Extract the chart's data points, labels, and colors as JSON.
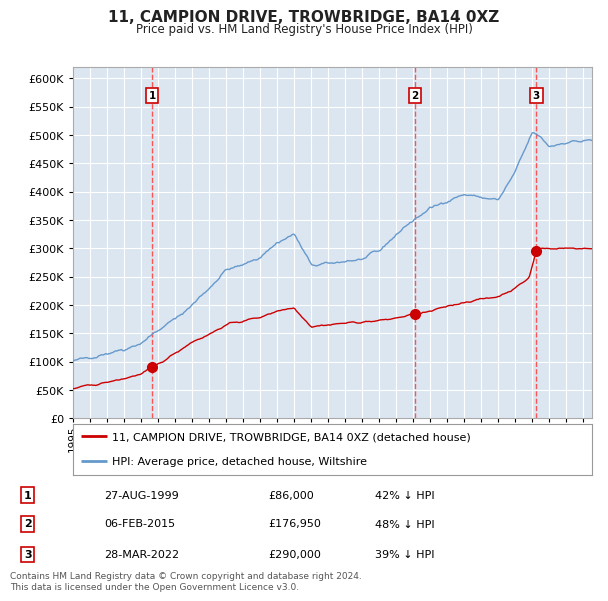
{
  "title": "11, CAMPION DRIVE, TROWBRIDGE, BA14 0XZ",
  "subtitle": "Price paid vs. HM Land Registry's House Price Index (HPI)",
  "legend_line1": "11, CAMPION DRIVE, TROWBRIDGE, BA14 0XZ (detached house)",
  "legend_line2": "HPI: Average price, detached house, Wiltshire",
  "transactions": [
    {
      "label": "1",
      "date": "27-AUG-1999",
      "price": 86000,
      "note": "42% ↓ HPI",
      "x": 1999.65
    },
    {
      "label": "2",
      "date": "06-FEB-2015",
      "price": 176950,
      "note": "48% ↓ HPI",
      "x": 2015.1
    },
    {
      "label": "3",
      "date": "28-MAR-2022",
      "price": 290000,
      "note": "39% ↓ HPI",
      "x": 2022.23
    }
  ],
  "hpi_color": "#6699cc",
  "price_color": "#cc0000",
  "bg_color": "#dce6f1",
  "grid_color": "#ffffff",
  "vline_color": "#ff4444",
  "annotation_box_color": "#cc0000",
  "footer": "Contains HM Land Registry data © Crown copyright and database right 2024.\nThis data is licensed under the Open Government Licence v3.0.",
  "ylim": [
    0,
    620000
  ],
  "xlim": [
    1995.0,
    2025.5
  ],
  "hpi_anchors_x": [
    1995,
    1996,
    1997,
    1998,
    1999,
    2000,
    2001,
    2002,
    2003,
    2004,
    2005,
    2006,
    2007,
    2008,
    2009,
    2010,
    2011,
    2012,
    2013,
    2014,
    2015,
    2016,
    2017,
    2018,
    2019,
    2020,
    2021,
    2021.5,
    2022,
    2022.5,
    2023,
    2024,
    2025.3
  ],
  "hpi_anchors_y": [
    100000,
    108000,
    115000,
    122000,
    133000,
    155000,
    175000,
    200000,
    230000,
    262000,
    270000,
    285000,
    310000,
    325000,
    270000,
    272000,
    278000,
    280000,
    295000,
    325000,
    350000,
    370000,
    385000,
    395000,
    390000,
    385000,
    435000,
    470000,
    505000,
    495000,
    480000,
    488000,
    490000
  ],
  "price_anchors_x": [
    1995,
    1996,
    1997,
    1998,
    1999,
    2000,
    2001,
    2002,
    2003,
    2004,
    2005,
    2006,
    2007,
    2008,
    2009,
    2010,
    2011,
    2012,
    2013,
    2014,
    2015,
    2016,
    2017,
    2018,
    2019,
    2020,
    2021,
    2021.8,
    2022.23,
    2022.5,
    2023,
    2024,
    2025.3
  ],
  "price_anchors_y": [
    52000,
    58000,
    63000,
    70000,
    78000,
    95000,
    115000,
    135000,
    148000,
    165000,
    172000,
    178000,
    190000,
    195000,
    162000,
    165000,
    168000,
    170000,
    172000,
    177000,
    183000,
    188000,
    198000,
    205000,
    210000,
    215000,
    230000,
    248000,
    295000,
    300000,
    300000,
    300000,
    300000
  ]
}
